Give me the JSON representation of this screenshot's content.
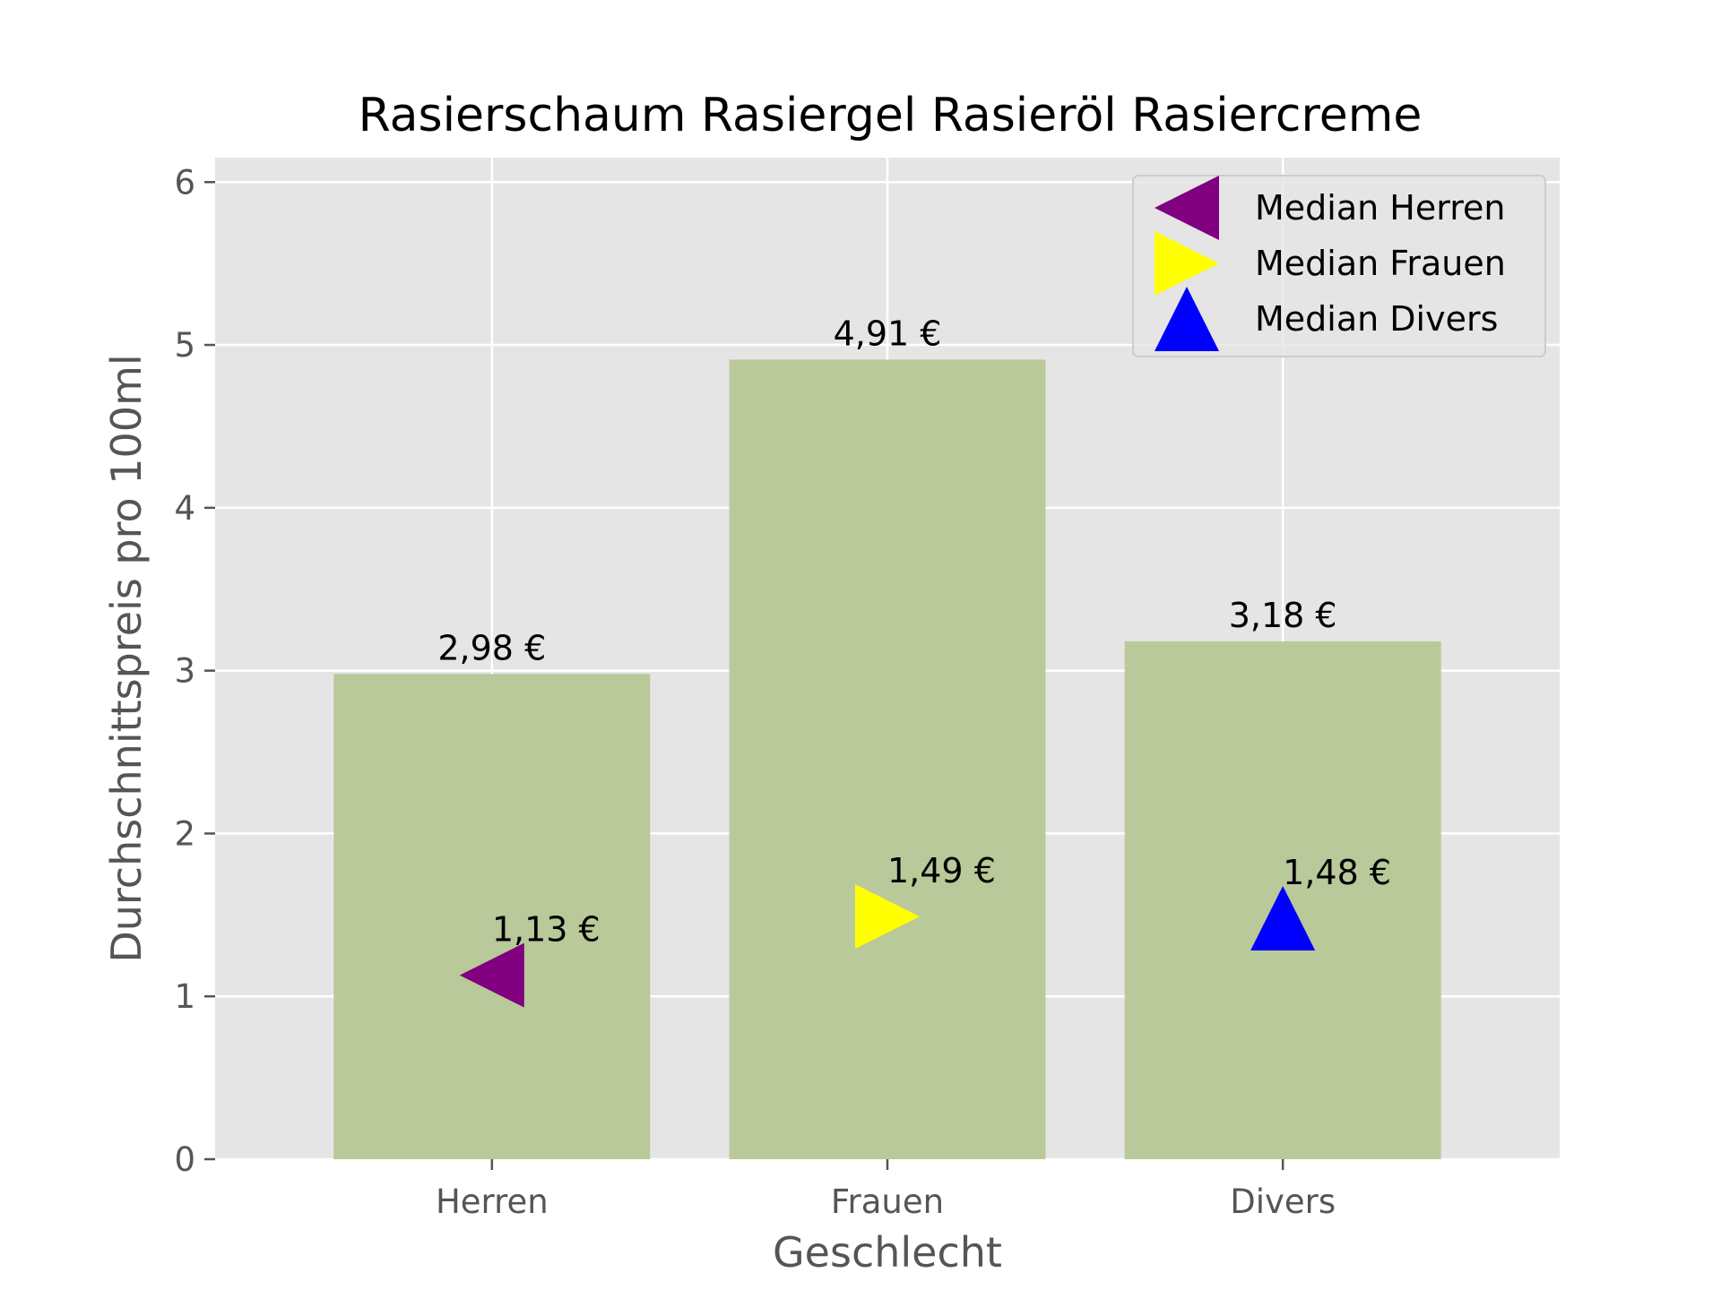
{
  "chart_data": {
    "type": "bar",
    "title": "Rasierschaum Rasiergel Rasieröl Rasiercreme",
    "xlabel": "Geschlecht",
    "ylabel": "Durchschnittspreis pro 100ml",
    "categories": [
      "Herren",
      "Frauen",
      "Divers"
    ],
    "values": [
      2.98,
      4.91,
      3.18
    ],
    "value_labels": [
      "2,98 €",
      "4,91 €",
      "3,18 €"
    ],
    "ylim": [
      0,
      6.15
    ],
    "yticks": [
      0,
      1,
      2,
      3,
      4,
      5,
      6
    ],
    "ytick_labels": [
      "0",
      "1",
      "2",
      "3",
      "4",
      "5",
      "6"
    ],
    "grid": true,
    "bar_color": "#b9c99a",
    "background_color": "#e5e5e5",
    "grid_color": "#ffffff",
    "medians": [
      {
        "name": "Median Herren",
        "category": "Herren",
        "value": 1.13,
        "label": "1,13 €",
        "marker": "triangle-left",
        "color": "#800080"
      },
      {
        "name": "Median Frauen",
        "category": "Frauen",
        "value": 1.49,
        "label": "1,49 €",
        "marker": "triangle-right",
        "color": "#ffff00"
      },
      {
        "name": "Median Divers",
        "category": "Divers",
        "value": 1.48,
        "label": "1,48 €",
        "marker": "triangle-up",
        "color": "#0000ff"
      }
    ],
    "legend": {
      "position": "top-right",
      "entries": [
        "Median Herren",
        "Median Frauen",
        "Median Divers"
      ]
    }
  }
}
